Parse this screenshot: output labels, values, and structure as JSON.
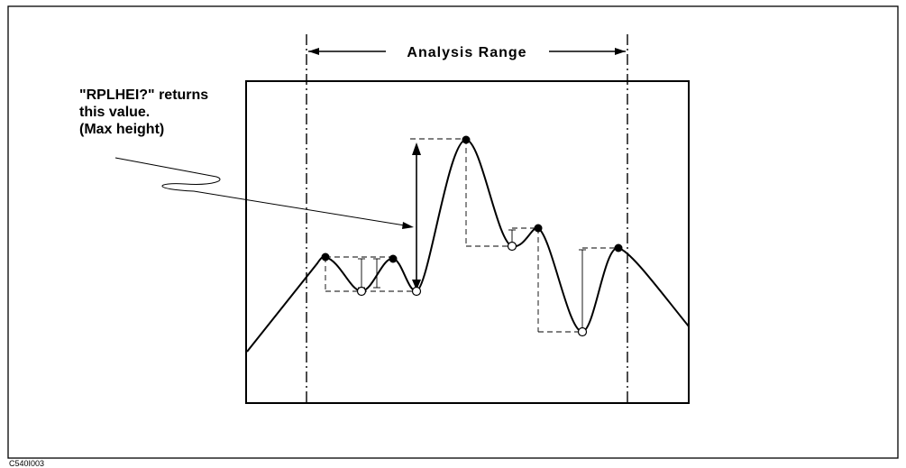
{
  "diagram": {
    "range_label": "Analysis Range",
    "annotation_lines": [
      "\"RPLHEI?\" returns",
      "this value.",
      "(Max height)"
    ],
    "figure_id": "C540I003"
  }
}
